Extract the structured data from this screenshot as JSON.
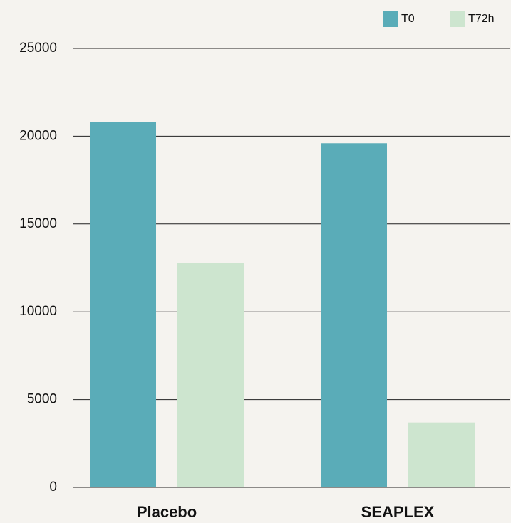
{
  "chart_data": {
    "type": "bar",
    "categories": [
      "Placebo",
      "SEAPLEX"
    ],
    "series": [
      {
        "name": "T0",
        "color": "#5aacb8",
        "values": [
          20800,
          19600
        ]
      },
      {
        "name": "T72h",
        "color": "#cde5cf",
        "values": [
          12800,
          3700
        ]
      }
    ],
    "ylim": [
      0,
      25000
    ],
    "yticks": [
      0,
      5000,
      10000,
      15000,
      20000,
      25000
    ],
    "grid": true,
    "legend": "top-right"
  }
}
